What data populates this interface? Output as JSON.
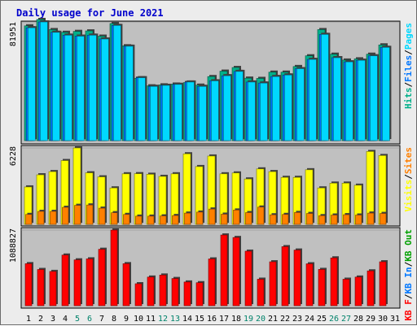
{
  "title": "Daily usage for June 2021",
  "colors": {
    "background": "#ececec",
    "panel": "#c0c0c0",
    "title": "#0000cc",
    "hits": "#00b08a",
    "files": "#0077ff",
    "pages": "#00d8ff",
    "visits": "#ffff00",
    "sites": "#ff8000",
    "kbin": "#0077ff",
    "kbout": "#00a000",
    "kbf": "#ff0000",
    "weekend": "#00826a",
    "weekday": "#000000"
  },
  "chart_data": [
    {
      "type": "bar",
      "panel": "top",
      "ymax_label": "81951",
      "ylim": [
        0,
        81951
      ],
      "legend": [
        {
          "label": "Hits",
          "key": "hits"
        },
        {
          "label": "Files",
          "key": "files"
        },
        {
          "label": "Pages",
          "key": "pages"
        }
      ],
      "categories": [
        "1",
        "2",
        "3",
        "4",
        "5",
        "6",
        "7",
        "8",
        "9",
        "10",
        "11",
        "12",
        "13",
        "14",
        "15",
        "16",
        "17",
        "18",
        "19",
        "20",
        "21",
        "22",
        "23",
        "24",
        "25",
        "26",
        "27",
        "28",
        "29",
        "30",
        "31"
      ],
      "series": [
        {
          "name": "Hits",
          "key": "hits",
          "values": [
            79260,
            83650,
            76660,
            74780,
            75420,
            75760,
            72130,
            80850,
            65490,
            43090,
            37830,
            38500,
            39040,
            40090,
            38310,
            44230,
            47960,
            50500,
            43150,
            42960,
            47280,
            47280,
            51160,
            58570,
            76660,
            59670,
            55640,
            56460,
            59670,
            66110,
            0
          ]
        },
        {
          "name": "Files",
          "key": "files",
          "values": [
            77910,
            81950,
            74780,
            72790,
            72130,
            72790,
            70170,
            79530,
            65190,
            43440,
            37450,
            38170,
            38830,
            40460,
            37450,
            41280,
            44800,
            47780,
            40460,
            39750,
            44230,
            45320,
            49680,
            56100,
            73340,
            57260,
            54400,
            55490,
            58570,
            64390,
            0
          ]
        },
        {
          "name": "Pages",
          "key": "pages",
          "values": [
            77910,
            81950,
            74780,
            72790,
            72130,
            72790,
            70170,
            79530,
            65190,
            43440,
            37450,
            38170,
            38830,
            40460,
            37450,
            41280,
            44800,
            47780,
            40460,
            39750,
            44230,
            45320,
            49680,
            56100,
            73340,
            57260,
            54400,
            55490,
            58570,
            64390,
            0
          ]
        }
      ]
    },
    {
      "type": "bar",
      "panel": "middle",
      "ymax_label": "6228",
      "ylim": [
        0,
        6228
      ],
      "legend": [
        {
          "label": "Visits",
          "key": "visits"
        },
        {
          "label": "Sites",
          "key": "sites"
        }
      ],
      "categories": [
        "1",
        "2",
        "3",
        "4",
        "5",
        "6",
        "7",
        "8",
        "9",
        "10",
        "11",
        "12",
        "13",
        "14",
        "15",
        "16",
        "17",
        "18",
        "19",
        "20",
        "21",
        "22",
        "23",
        "24",
        "25",
        "26",
        "27",
        "28",
        "29",
        "30",
        "31"
      ],
      "series": [
        {
          "name": "Visits",
          "key": "visits",
          "values": [
            3050,
            4040,
            4300,
            5200,
            6230,
            4200,
            3870,
            2970,
            4120,
            4130,
            4080,
            3910,
            4120,
            5750,
            4710,
            5570,
            4120,
            4190,
            3700,
            4520,
            4300,
            3830,
            3830,
            4450,
            2970,
            3360,
            3360,
            3190,
            5940,
            5610,
            0
          ]
        },
        {
          "name": "Sites",
          "key": "sites",
          "values": [
            810,
            1060,
            1060,
            1390,
            1550,
            1580,
            1320,
            950,
            810,
            670,
            670,
            690,
            720,
            920,
            1000,
            1250,
            830,
            1170,
            960,
            1410,
            780,
            810,
            970,
            890,
            710,
            760,
            790,
            760,
            920,
            890,
            0
          ]
        }
      ]
    },
    {
      "type": "bar",
      "panel": "bottom",
      "ymax_label": "1088827",
      "ylim": [
        0,
        1088827
      ],
      "legend": [
        {
          "label": "KB F",
          "key": "kbf"
        },
        {
          "label": "KB In",
          "key": "kbin"
        },
        {
          "label": "KB Out",
          "key": "kbout"
        }
      ],
      "categories": [
        "1",
        "2",
        "3",
        "4",
        "5",
        "6",
        "7",
        "8",
        "9",
        "10",
        "11",
        "12",
        "13",
        "14",
        "15",
        "16",
        "17",
        "18",
        "19",
        "20",
        "21",
        "22",
        "23",
        "24",
        "25",
        "26",
        "27",
        "28",
        "29",
        "30",
        "31"
      ],
      "series": [
        {
          "name": "KB F",
          "key": "kbf",
          "values": [
            605000,
            521000,
            493000,
            729000,
            660000,
            674000,
            812000,
            1088827,
            605000,
            316000,
            412000,
            441000,
            391000,
            341000,
            331000,
            673000,
            1018000,
            982000,
            785000,
            381000,
            632000,
            850000,
            801000,
            603000,
            522000,
            688000,
            381000,
            412000,
            501000,
            632000,
            0
          ]
        }
      ]
    }
  ],
  "x_axis": {
    "labels": [
      "1",
      "2",
      "3",
      "4",
      "5",
      "6",
      "7",
      "8",
      "9",
      "10",
      "11",
      "12",
      "13",
      "14",
      "15",
      "16",
      "17",
      "18",
      "19",
      "20",
      "21",
      "22",
      "23",
      "24",
      "25",
      "26",
      "27",
      "28",
      "29",
      "30",
      "31"
    ],
    "weekend": [
      false,
      false,
      false,
      false,
      true,
      true,
      false,
      false,
      false,
      false,
      false,
      true,
      true,
      false,
      false,
      false,
      false,
      false,
      true,
      true,
      false,
      false,
      false,
      false,
      false,
      true,
      true,
      false,
      false,
      false,
      false
    ]
  }
}
